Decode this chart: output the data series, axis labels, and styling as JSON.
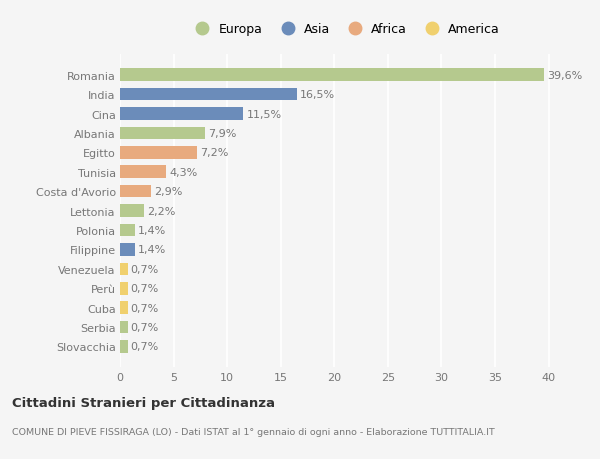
{
  "countries": [
    "Romania",
    "India",
    "Cina",
    "Albania",
    "Egitto",
    "Tunisia",
    "Costa d'Avorio",
    "Lettonia",
    "Polonia",
    "Filippine",
    "Venezuela",
    "Perù",
    "Cuba",
    "Serbia",
    "Slovacchia"
  ],
  "values": [
    39.6,
    16.5,
    11.5,
    7.9,
    7.2,
    4.3,
    2.9,
    2.2,
    1.4,
    1.4,
    0.7,
    0.7,
    0.7,
    0.7,
    0.7
  ],
  "labels": [
    "39,6%",
    "16,5%",
    "11,5%",
    "7,9%",
    "7,2%",
    "4,3%",
    "2,9%",
    "2,2%",
    "1,4%",
    "1,4%",
    "0,7%",
    "0,7%",
    "0,7%",
    "0,7%",
    "0,7%"
  ],
  "continents": [
    "Europa",
    "Asia",
    "Asia",
    "Europa",
    "Africa",
    "Africa",
    "Africa",
    "Europa",
    "Europa",
    "Asia",
    "America",
    "America",
    "America",
    "Europa",
    "Europa"
  ],
  "colors": {
    "Europa": "#b5c98e",
    "Asia": "#6b8cba",
    "Africa": "#e8aa7e",
    "America": "#f0d06e"
  },
  "xlim": [
    0,
    42
  ],
  "xticks": [
    0,
    5,
    10,
    15,
    20,
    25,
    30,
    35,
    40
  ],
  "title": "Cittadini Stranieri per Cittadinanza",
  "subtitle": "COMUNE DI PIEVE FISSIRAGA (LO) - Dati ISTAT al 1° gennaio di ogni anno - Elaborazione TUTTITALIA.IT",
  "background_color": "#f5f5f5",
  "grid_color": "#ffffff",
  "bar_height": 0.65,
  "text_color": "#777777",
  "label_fontsize": 8.0,
  "tick_fontsize": 8.0,
  "legend_order": [
    "Europa",
    "Asia",
    "Africa",
    "America"
  ]
}
